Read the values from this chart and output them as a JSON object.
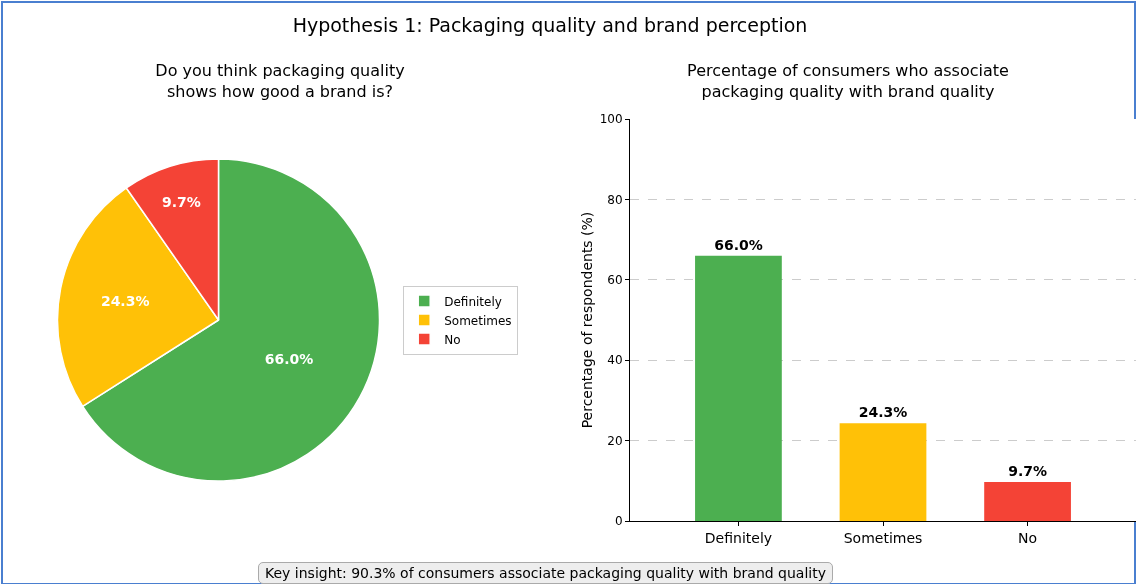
{
  "chart_data": [
    {
      "type": "other",
      "title": "Hypothesis 1: Packaging quality and brand perception",
      "annotations": [
        "Key insight: 90.3% of consumers associate packaging quality with brand quality"
      ]
    },
    {
      "type": "pie",
      "title": "Do you think packaging quality\nshows how good a brand is?",
      "categories": [
        "Definitely",
        "Sometimes",
        "No"
      ],
      "values": [
        66.0,
        24.3,
        9.7
      ],
      "colors": [
        "#4caf50",
        "#ffc107",
        "#f44336"
      ],
      "value_labels": [
        "66.0%",
        "24.3%",
        "9.7%"
      ],
      "legend": "right"
    },
    {
      "type": "bar",
      "title": "Percentage of consumers who associate\npackaging quality with brand quality",
      "ylabel": "Percentage of respondents (%)",
      "categories": [
        "Definitely",
        "Sometimes",
        "No"
      ],
      "values": [
        66.0,
        24.3,
        9.7
      ],
      "colors": [
        "#4caf50",
        "#ffc107",
        "#f44336"
      ],
      "value_labels": [
        "66.0%",
        "24.3%",
        "9.7%"
      ],
      "ylim": [
        0,
        100
      ],
      "yticks": [
        0,
        20,
        40,
        60,
        80,
        100
      ],
      "grid": "y",
      "legend": false
    }
  ]
}
